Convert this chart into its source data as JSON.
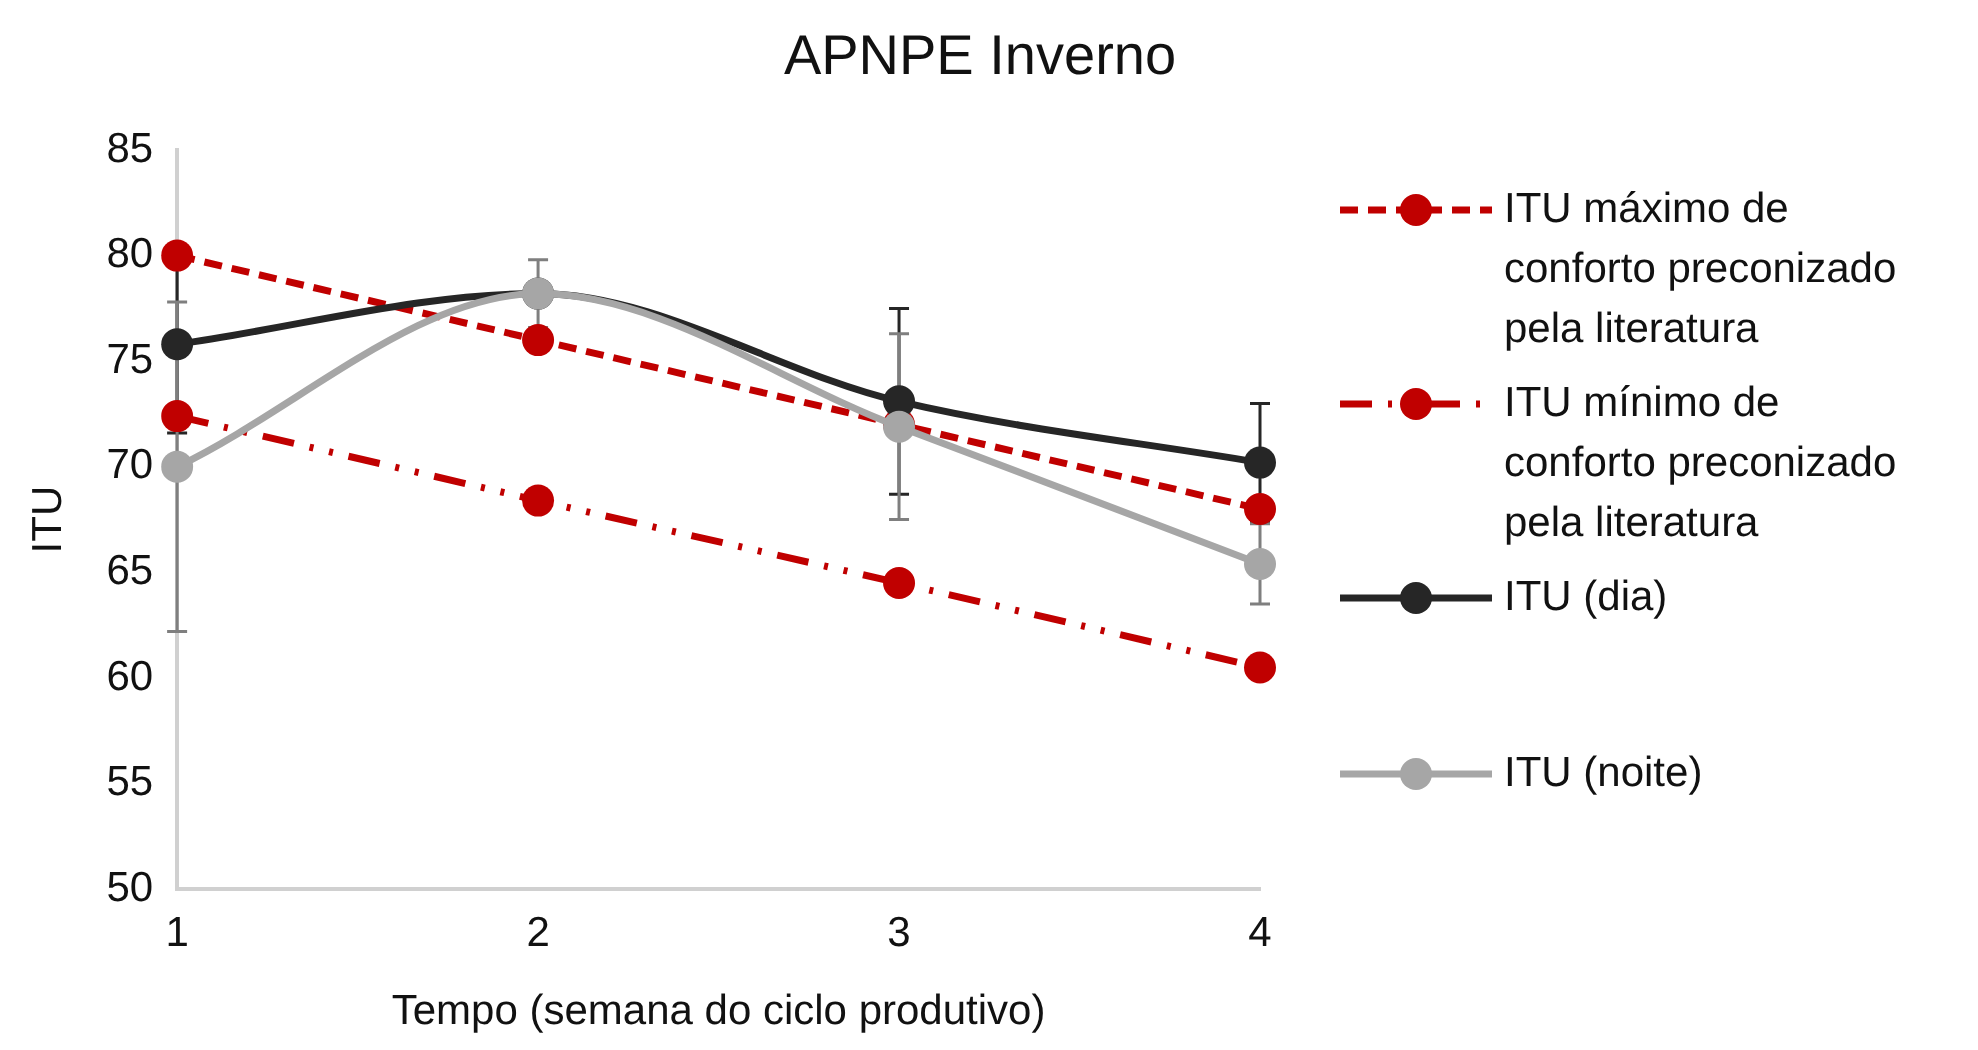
{
  "chart_data": {
    "type": "line",
    "title": "APNPE Inverno",
    "xlabel": "Tempo (semana do ciclo produtivo)",
    "ylabel": "ITU",
    "categories": [
      "1",
      "2",
      "3",
      "4"
    ],
    "series": [
      {
        "name": "ITU máximo de conforto preconizado pela literatura",
        "color": "#c00000",
        "values": [
          80,
          76,
          72,
          68
        ],
        "line_style": "dashed"
      },
      {
        "name": "ITU mínimo de conforto preconizado pela literatura",
        "color": "#c00000",
        "values": [
          72.4,
          68.4,
          64.5,
          60.5
        ],
        "line_style": "dashdot"
      },
      {
        "name": "ITU (dia)",
        "color": "#262626",
        "values": [
          75.8,
          78.2,
          73.1,
          70.2
        ],
        "errors": [
          4.2,
          null,
          4.4,
          2.8
        ],
        "line_style": "solid"
      },
      {
        "name": "ITU (noite)",
        "color": "#a6a6a6",
        "values": [
          70,
          78.2,
          71.9,
          65.4
        ],
        "errors": [
          7.8,
          1.6,
          4.4,
          1.9
        ],
        "line_style": "solid"
      }
    ],
    "ylim": [
      50,
      85
    ],
    "yticks": [
      50,
      55,
      60,
      65,
      70,
      75,
      80,
      85
    ],
    "grid": false,
    "legend": "right",
    "marker": "circle"
  }
}
